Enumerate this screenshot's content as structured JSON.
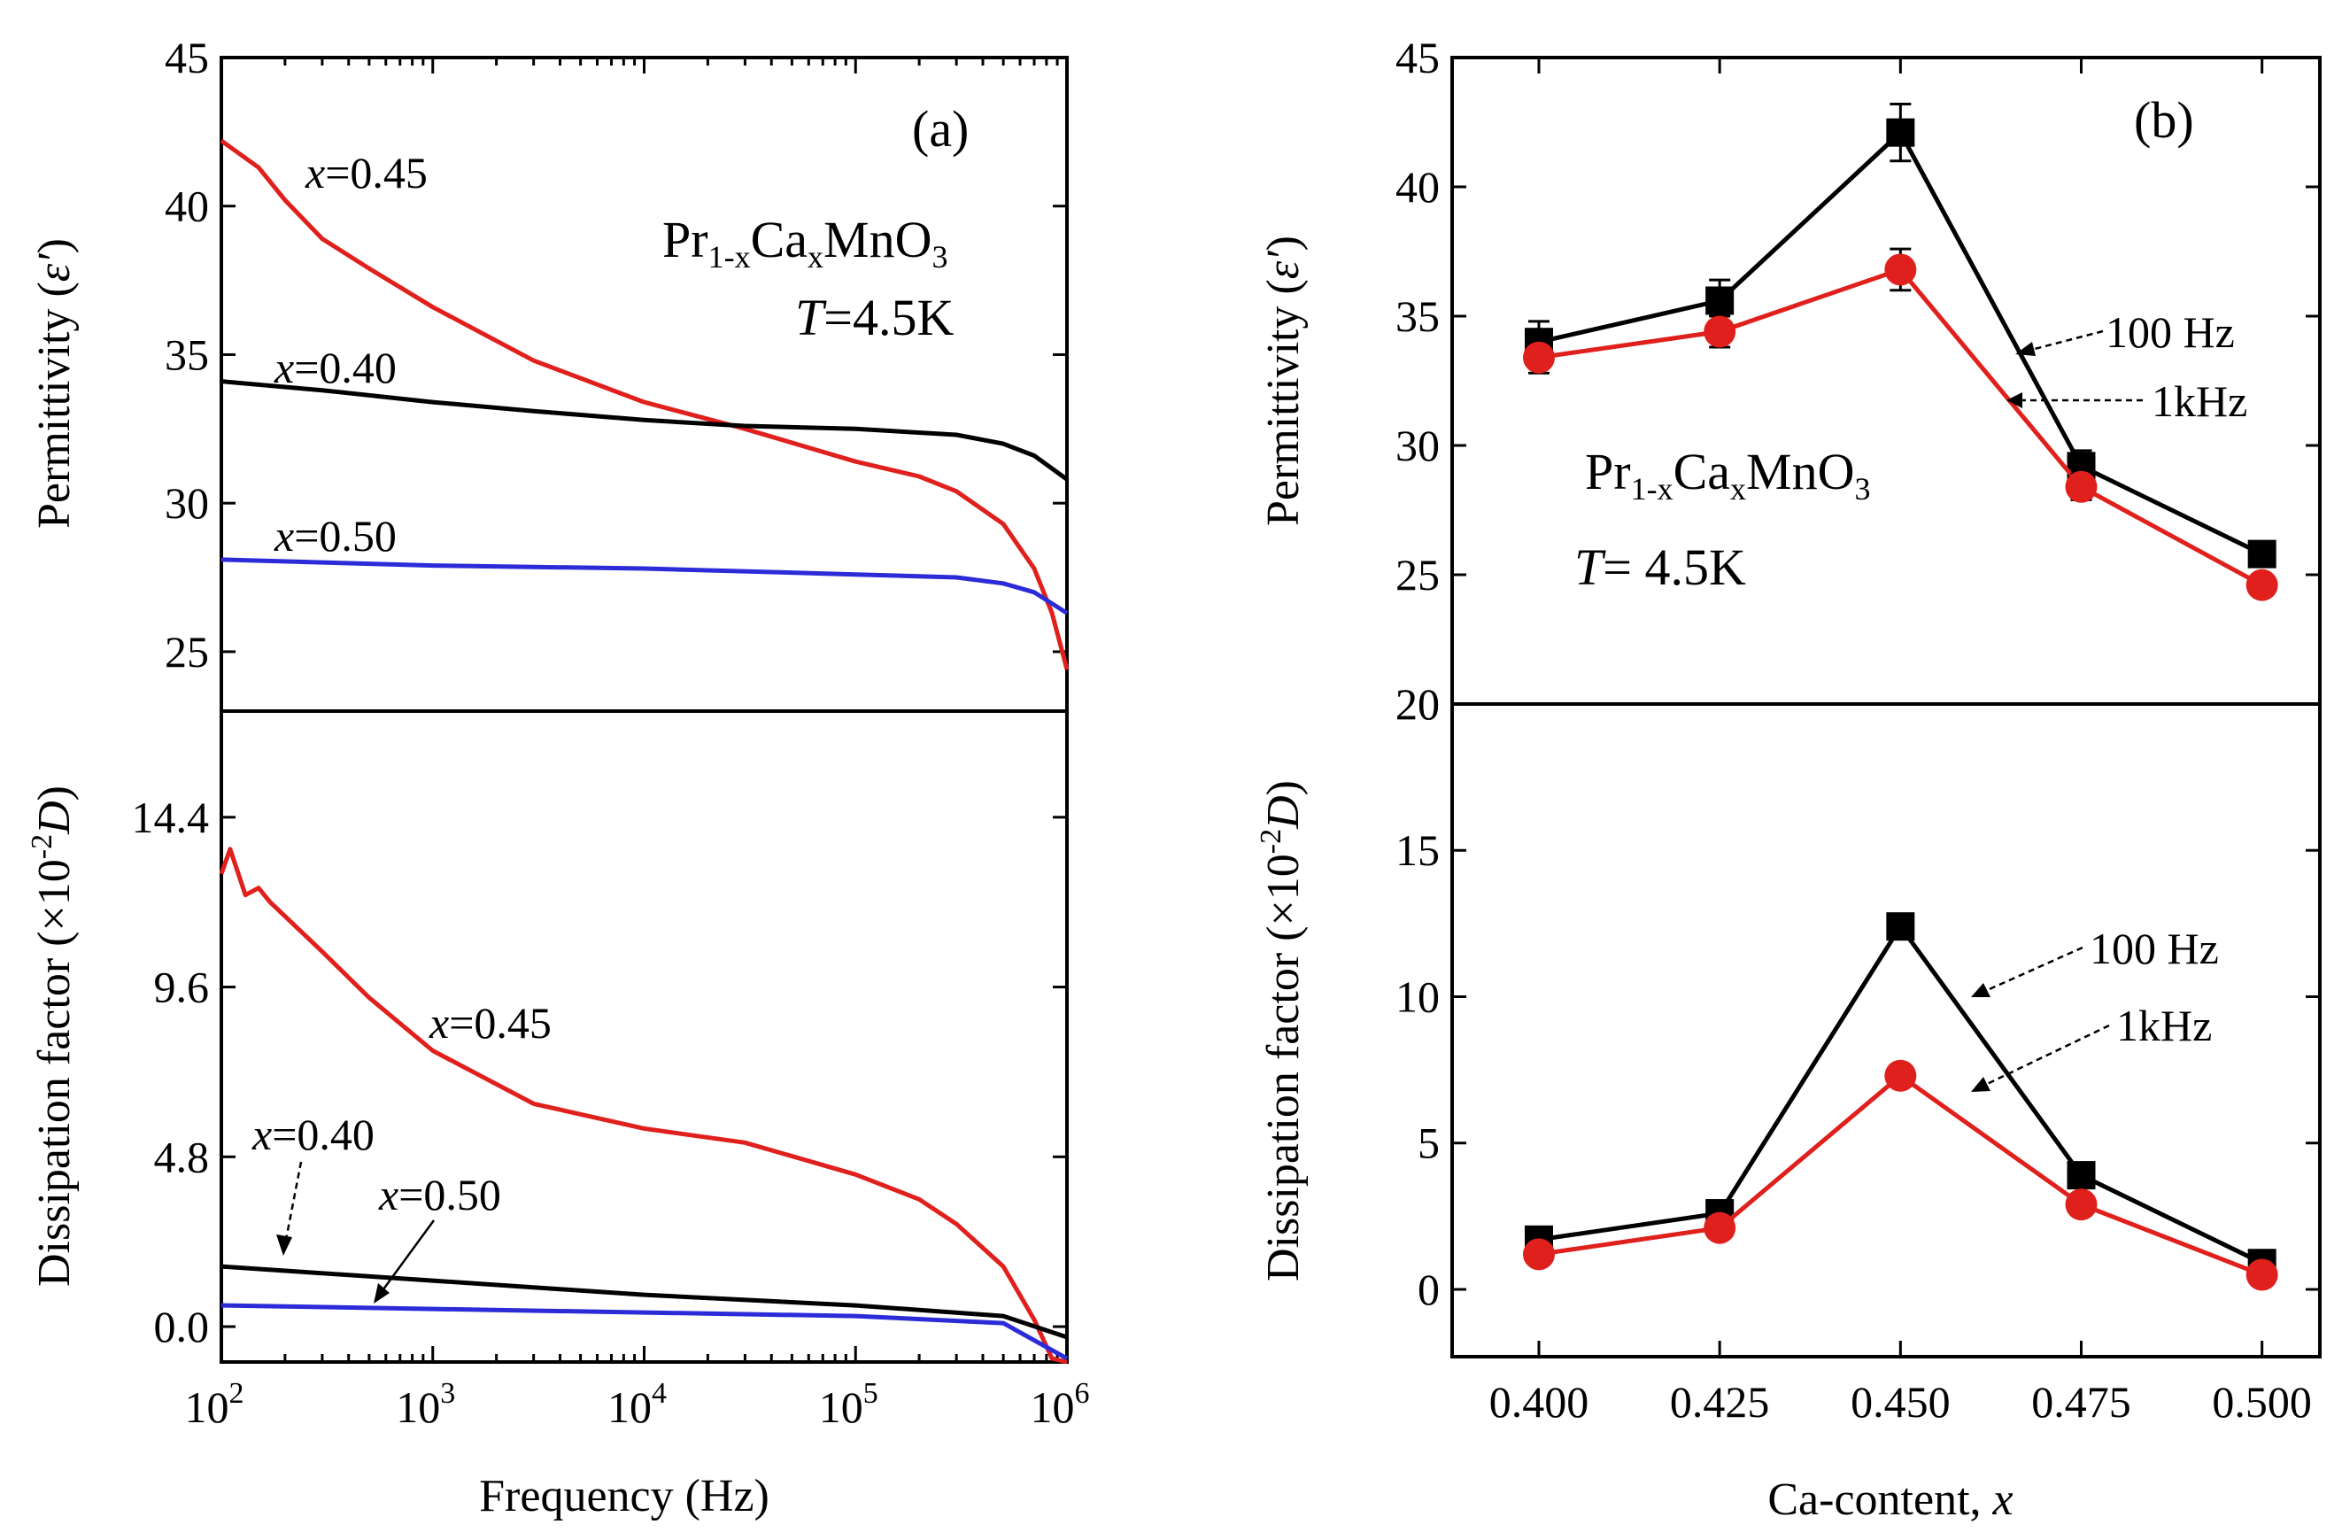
{
  "chart_data": [
    {
      "panel": "a",
      "type": "line",
      "panel_label": "(a)",
      "material": {
        "base": "Pr",
        "s1": "1-x",
        "mid": "Ca",
        "s2": "x",
        "end": "MnO",
        "s3": "3"
      },
      "temperature": {
        "var": "T",
        "val": "=4.5K"
      },
      "xlabel": "Frequency (Hz)",
      "xscale": "log",
      "xlim": [
        100,
        1000000
      ],
      "xticks": [
        {
          "base": "10",
          "exp": "2",
          "value": 100
        },
        {
          "base": "10",
          "exp": "3",
          "value": 1000
        },
        {
          "base": "10",
          "exp": "4",
          "value": 10000
        },
        {
          "base": "10",
          "exp": "5",
          "value": 100000
        },
        {
          "base": "10",
          "exp": "6",
          "value": 1000000
        }
      ],
      "top": {
        "ylabel": {
          "text": "Permittivity (",
          "sym": "ε′",
          "close": ")"
        },
        "ylim": [
          23,
          45
        ],
        "yticks": [
          "25",
          "30",
          "35",
          "40",
          "45"
        ],
        "series": [
          {
            "name": "x=0.45",
            "label_var": "x",
            "label_val": "=0.45",
            "color": "#e0201c",
            "x": [
              100,
              150,
              200,
              300,
              500,
              1000,
              3000,
              10000,
              30000,
              100000,
              200000,
              300000,
              500000,
              700000,
              850000,
              1000000
            ],
            "y": [
              42.2,
              41.3,
              40.2,
              38.9,
              37.9,
              36.6,
              34.8,
              33.4,
              32.5,
              31.4,
              30.9,
              30.4,
              29.3,
              27.8,
              26.3,
              24.4
            ]
          },
          {
            "name": "x=0.40",
            "label_var": "x",
            "label_val": "=0.40",
            "color": "#000000",
            "x": [
              100,
              300,
              1000,
              3000,
              10000,
              30000,
              100000,
              300000,
              500000,
              700000,
              1000000
            ],
            "y": [
              34.1,
              33.8,
              33.4,
              33.1,
              32.8,
              32.6,
              32.5,
              32.3,
              32.0,
              31.6,
              30.8
            ]
          },
          {
            "name": "x=0.50",
            "label_var": "x",
            "label_val": "=0.50",
            "color": "#2b2bd8",
            "x": [
              100,
              1000,
              10000,
              100000,
              300000,
              500000,
              700000,
              1000000
            ],
            "y": [
              28.1,
              27.9,
              27.8,
              27.6,
              27.5,
              27.3,
              27.0,
              26.3
            ]
          }
        ]
      },
      "bottom": {
        "ylabel": {
          "text": "Dissipation factor (×10",
          "sup": "-2",
          "sym": "D",
          "close": ")"
        },
        "ylim": [
          -1.0,
          17.4
        ],
        "yticks": [
          "0.0",
          "4.8",
          "9.6",
          "14.4"
        ],
        "series": [
          {
            "name": "x=0.45",
            "label_var": "x",
            "label_val": "=0.45",
            "color": "#e0201c",
            "x": [
              100,
              110,
              130,
              150,
              170,
              200,
              300,
              500,
              1000,
              3000,
              10000,
              30000,
              100000,
              200000,
              300000,
              500000,
              700000,
              850000,
              1000000
            ],
            "y": [
              12.8,
              13.5,
              12.2,
              12.4,
              12.0,
              11.6,
              10.6,
              9.3,
              7.8,
              6.3,
              5.6,
              5.2,
              4.3,
              3.6,
              2.9,
              1.7,
              0.2,
              -0.9,
              -1.0
            ]
          },
          {
            "name": "x=0.40",
            "label_var": "x",
            "label_val": "=0.40",
            "color": "#000000",
            "x": [
              100,
              1000,
              10000,
              100000,
              500000,
              1000000
            ],
            "y": [
              1.7,
              1.3,
              0.9,
              0.6,
              0.3,
              -0.3
            ]
          },
          {
            "name": "x=0.50",
            "label_var": "x",
            "label_val": "=0.50",
            "color": "#2b2bd8",
            "x": [
              100,
              1000,
              10000,
              100000,
              500000,
              1000000
            ],
            "y": [
              0.6,
              0.5,
              0.4,
              0.3,
              0.1,
              -0.9
            ]
          }
        ]
      }
    },
    {
      "panel": "b",
      "type": "line",
      "panel_label": "(b)",
      "material": {
        "base": "Pr",
        "s1": "1-x",
        "mid": "Ca",
        "s2": "x",
        "end": "MnO",
        "s3": "3"
      },
      "temperature": {
        "var": "T",
        "val": "= 4.5K"
      },
      "xlabel": {
        "text": "Ca-content, ",
        "var": "x"
      },
      "xlim": [
        0.388,
        0.508
      ],
      "categories": [
        "0.400",
        "0.425",
        "0.450",
        "0.475",
        "0.500"
      ],
      "x": [
        0.4,
        0.425,
        0.45,
        0.475,
        0.5
      ],
      "top": {
        "ylabel": {
          "text": "Permittivity (",
          "sym": "ε′",
          "close": ")"
        },
        "ylim": [
          20,
          45
        ],
        "yticks": [
          "20",
          "25",
          "30",
          "35",
          "40",
          "45"
        ],
        "series": [
          {
            "name": "100 Hz",
            "color": "#000000",
            "marker": "square",
            "values": [
              34.0,
              35.6,
              42.1,
              29.2,
              25.8
            ],
            "errors": [
              0.8,
              0.8,
              1.1,
              0.6,
              0.4
            ]
          },
          {
            "name": "1kHz",
            "color": "#e0201c",
            "marker": "circle",
            "values": [
              33.4,
              34.4,
              36.8,
              28.4,
              24.6
            ],
            "errors": [
              0.6,
              0.6,
              0.8,
              0.5,
              0.3
            ]
          }
        ]
      },
      "bottom": {
        "ylabel": {
          "text": "Dissipation factor (×10",
          "sup": "-2",
          "sym": "D",
          "close": ")"
        },
        "ylim": [
          -2.3,
          20
        ],
        "yticks": [
          "0",
          "5",
          "10",
          "15",
          "20"
        ],
        "series": [
          {
            "name": "100 Hz",
            "color": "#000000",
            "marker": "square",
            "values": [
              1.7,
              2.6,
              12.4,
              3.9,
              0.9
            ]
          },
          {
            "name": "1kHz",
            "color": "#e0201c",
            "marker": "circle",
            "values": [
              1.2,
              2.1,
              7.3,
              2.9,
              0.5
            ]
          }
        ]
      }
    }
  ]
}
